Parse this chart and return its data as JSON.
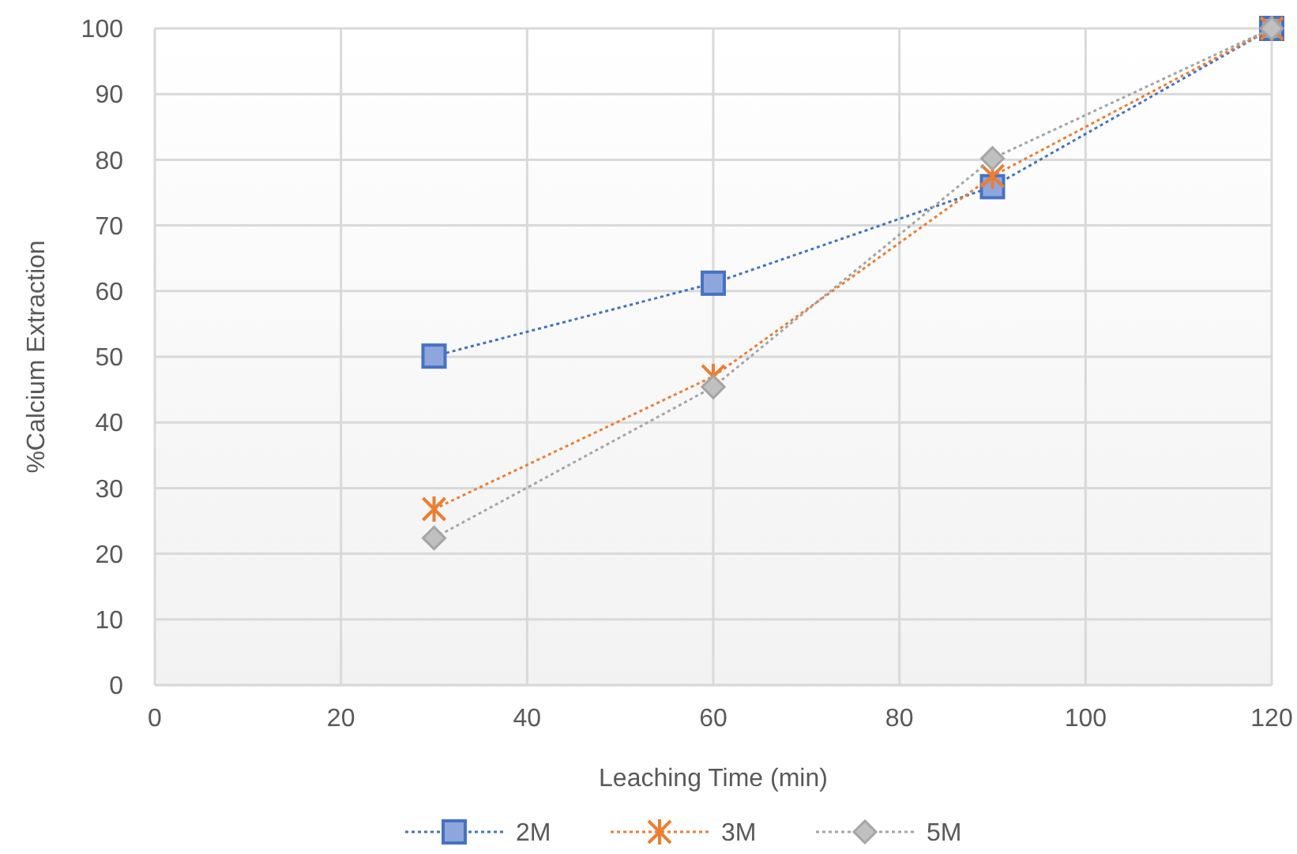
{
  "chart_data": {
    "type": "line",
    "xlabel": "Leaching Time (min)",
    "ylabel": "%Calcium Extraction",
    "x": [
      30,
      60,
      90,
      120
    ],
    "series": [
      {
        "name": "2M",
        "color": "#4472c4",
        "marker": "square",
        "values": [
          50.1,
          61.2,
          75.9,
          100
        ]
      },
      {
        "name": "3M",
        "color": "#ed7d31",
        "marker": "cross",
        "values": [
          26.8,
          47,
          77.5,
          100
        ]
      },
      {
        "name": "5M",
        "color": "#a5a5a5",
        "marker": "diamond",
        "values": [
          22.4,
          45.4,
          80.2,
          100
        ]
      }
    ],
    "xlim": [
      0,
      120
    ],
    "xticks": [
      0,
      20,
      40,
      60,
      80,
      100,
      120
    ],
    "ylim": [
      0,
      100
    ],
    "yticks": [
      0,
      10,
      20,
      30,
      40,
      50,
      60,
      70,
      80,
      90,
      100
    ],
    "grid": true,
    "legend": "bottom",
    "line_style": "dotted"
  }
}
